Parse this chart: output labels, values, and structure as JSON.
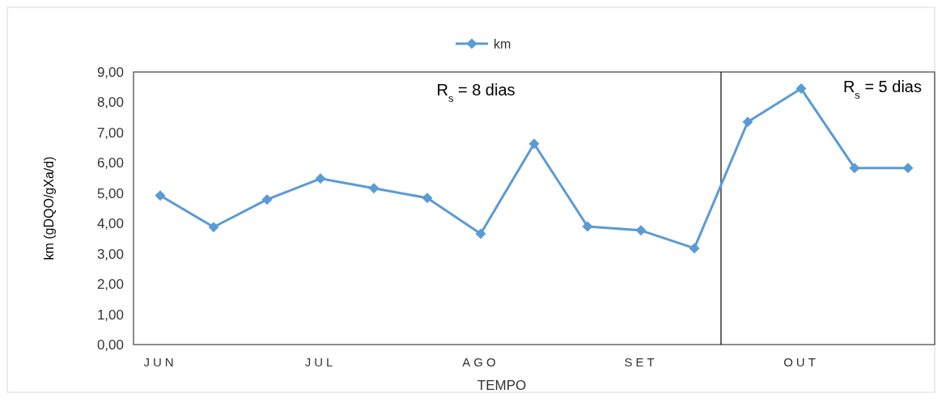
{
  "chart_data": {
    "type": "line",
    "xlabel": "TEMPO",
    "ylabel": "km (gDQO/gXa/d)",
    "categories": [
      "JUN",
      null,
      null,
      "JUL",
      null,
      null,
      "AGO",
      null,
      null,
      "SET",
      null,
      null,
      "OUT",
      null,
      null
    ],
    "series": [
      {
        "name": "km",
        "color": "#5b9bd5",
        "values": [
          4.92,
          3.88,
          4.79,
          5.48,
          5.16,
          4.84,
          3.66,
          6.63,
          3.9,
          3.77,
          3.18,
          7.35,
          8.45,
          5.83,
          5.83
        ]
      }
    ],
    "ylim": [
      0,
      9
    ],
    "yticks": [
      {
        "value": 0,
        "label": "0,00"
      },
      {
        "value": 1,
        "label": "1,00"
      },
      {
        "value": 2,
        "label": "2,00"
      },
      {
        "value": 3,
        "label": "3,00"
      },
      {
        "value": 4,
        "label": "4,00"
      },
      {
        "value": 5,
        "label": "5,00"
      },
      {
        "value": 6,
        "label": "6,00"
      },
      {
        "value": 7,
        "label": "7,00"
      },
      {
        "value": 8,
        "label": "8,00"
      },
      {
        "value": 9,
        "label": "9,00"
      }
    ],
    "annotations": [
      "R$_{s}$ = 8 dias",
      "R$_{s}$ = 5 dias"
    ],
    "legend": "top",
    "marker": "diamond",
    "line_style": "solid",
    "grid": false
  }
}
